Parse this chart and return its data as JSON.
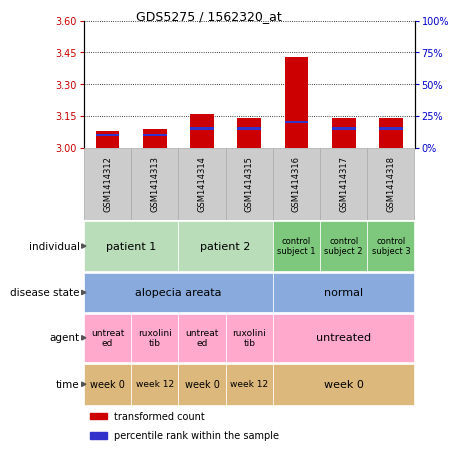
{
  "title": "GDS5275 / 1562320_at",
  "samples": [
    "GSM1414312",
    "GSM1414313",
    "GSM1414314",
    "GSM1414315",
    "GSM1414316",
    "GSM1414317",
    "GSM1414318"
  ],
  "red_values": [
    3.08,
    3.09,
    3.16,
    3.14,
    3.43,
    3.14,
    3.14
  ],
  "blue_values_pct": [
    10,
    10,
    15,
    15,
    20,
    15,
    15
  ],
  "ylim_left": [
    3.0,
    3.6
  ],
  "ylim_right": [
    0,
    100
  ],
  "yticks_left": [
    3.0,
    3.15,
    3.3,
    3.45,
    3.6
  ],
  "yticks_right": [
    0,
    25,
    50,
    75,
    100
  ],
  "left_color": "#cc0000",
  "right_color": "#0000cc",
  "blue_bar_color": "#3333cc",
  "red_bar_color": "#cc0000",
  "annotation_rows": {
    "individual": {
      "label": "individual",
      "groups": [
        {
          "span": [
            0,
            1
          ],
          "text": "patient 1",
          "color": "#b8ddb8",
          "fontsize": 8
        },
        {
          "span": [
            2,
            3
          ],
          "text": "patient 2",
          "color": "#b8ddb8",
          "fontsize": 8
        },
        {
          "span": [
            4,
            4
          ],
          "text": "control\nsubject 1",
          "color": "#7dc87d",
          "fontsize": 6
        },
        {
          "span": [
            5,
            5
          ],
          "text": "control\nsubject 2",
          "color": "#7dc87d",
          "fontsize": 6
        },
        {
          "span": [
            6,
            6
          ],
          "text": "control\nsubject 3",
          "color": "#7dc87d",
          "fontsize": 6
        }
      ]
    },
    "disease_state": {
      "label": "disease state",
      "groups": [
        {
          "span": [
            0,
            3
          ],
          "text": "alopecia areata",
          "color": "#88aadd",
          "fontsize": 8
        },
        {
          "span": [
            4,
            6
          ],
          "text": "normal",
          "color": "#88aadd",
          "fontsize": 8
        }
      ]
    },
    "agent": {
      "label": "agent",
      "groups": [
        {
          "span": [
            0,
            0
          ],
          "text": "untreat\ned",
          "color": "#ffaacc",
          "fontsize": 6.5
        },
        {
          "span": [
            1,
            1
          ],
          "text": "ruxolini\ntib",
          "color": "#ffaacc",
          "fontsize": 6.5
        },
        {
          "span": [
            2,
            2
          ],
          "text": "untreat\ned",
          "color": "#ffaacc",
          "fontsize": 6.5
        },
        {
          "span": [
            3,
            3
          ],
          "text": "ruxolini\ntib",
          "color": "#ffaacc",
          "fontsize": 6.5
        },
        {
          "span": [
            4,
            6
          ],
          "text": "untreated",
          "color": "#ffaacc",
          "fontsize": 8
        }
      ]
    },
    "time": {
      "label": "time",
      "groups": [
        {
          "span": [
            0,
            0
          ],
          "text": "week 0",
          "color": "#ddb87d",
          "fontsize": 7
        },
        {
          "span": [
            1,
            1
          ],
          "text": "week 12",
          "color": "#ddb87d",
          "fontsize": 6.5
        },
        {
          "span": [
            2,
            2
          ],
          "text": "week 0",
          "color": "#ddb87d",
          "fontsize": 7
        },
        {
          "span": [
            3,
            3
          ],
          "text": "week 12",
          "color": "#ddb87d",
          "fontsize": 6.5
        },
        {
          "span": [
            4,
            6
          ],
          "text": "week 0",
          "color": "#ddb87d",
          "fontsize": 8
        }
      ]
    }
  },
  "annot_row_order": [
    "individual",
    "disease_state",
    "agent",
    "time"
  ],
  "annot_row_labels": [
    "individual",
    "disease state",
    "agent",
    "time"
  ],
  "legend_items": [
    {
      "label": "transformed count",
      "color": "#cc0000"
    },
    {
      "label": "percentile rank within the sample",
      "color": "#3333cc"
    }
  ]
}
